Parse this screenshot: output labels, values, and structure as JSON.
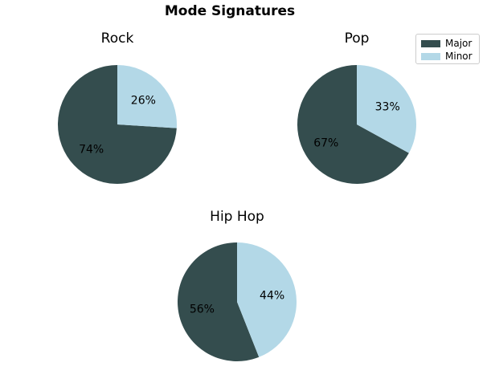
{
  "chart_data": [
    {
      "type": "pie",
      "title": "Rock",
      "categories": [
        "Major",
        "Minor"
      ],
      "values": [
        74,
        26
      ],
      "labels": [
        "74%",
        "26%"
      ]
    },
    {
      "type": "pie",
      "title": "Pop",
      "categories": [
        "Major",
        "Minor"
      ],
      "values": [
        67,
        33
      ],
      "labels": [
        "67%",
        "33%"
      ]
    },
    {
      "type": "pie",
      "title": "Hip Hop",
      "categories": [
        "Major",
        "Minor"
      ],
      "values": [
        56,
        44
      ],
      "labels": [
        "56%",
        "44%"
      ]
    }
  ],
  "figure": {
    "suptitle": "Mode Signatures",
    "legend": {
      "placement": "top-right",
      "entries": [
        {
          "label": "Major",
          "color": "#344d4e"
        },
        {
          "label": "Minor",
          "color": "#b3d8e7"
        }
      ]
    }
  }
}
